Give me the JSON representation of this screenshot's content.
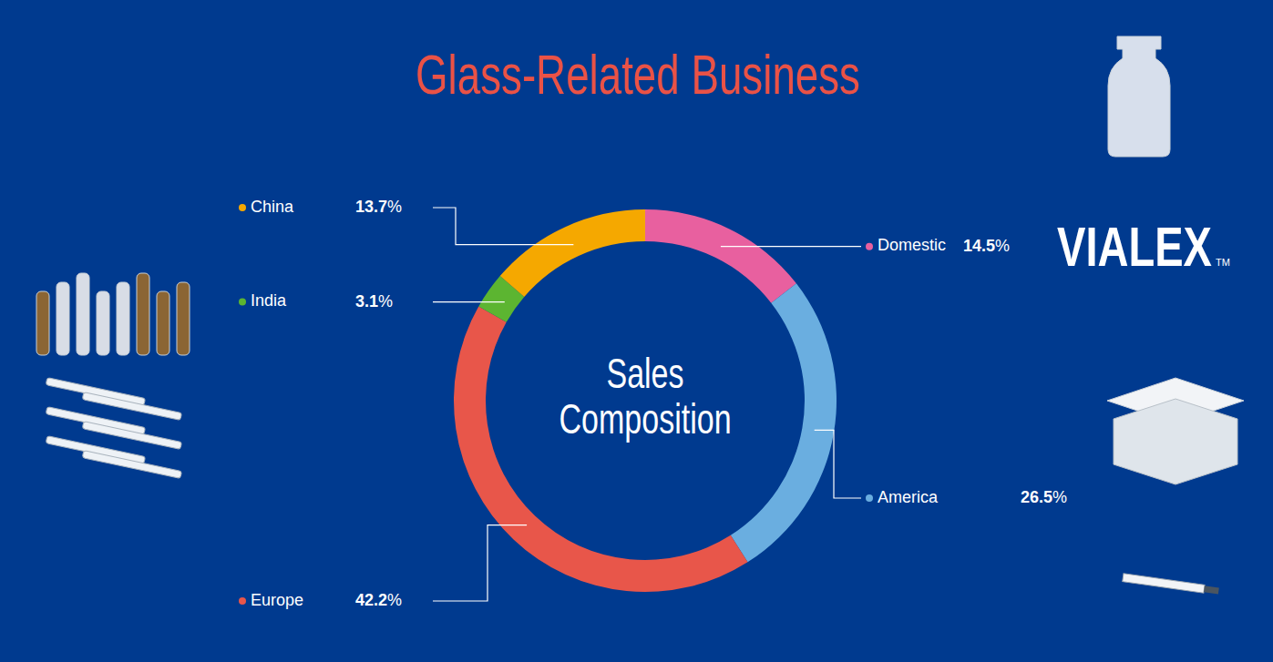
{
  "chart_data": {
    "type": "pie",
    "title": "Glass-Related Business",
    "center_text": "Sales Composition",
    "categories": [
      "Domestic",
      "America",
      "Europe",
      "India",
      "China"
    ],
    "values": [
      14.5,
      26.5,
      42.2,
      3.1,
      13.7
    ],
    "value_labels": [
      "14.5%",
      "26.5%",
      "42.2%",
      "3.1%",
      "13.7%"
    ],
    "colors": [
      "#e8609f",
      "#6aaee0",
      "#e8564a",
      "#5cb531",
      "#f5a800"
    ],
    "data_labels": true
  },
  "brand": {
    "name": "VIALEX",
    "trademark": "TM"
  }
}
